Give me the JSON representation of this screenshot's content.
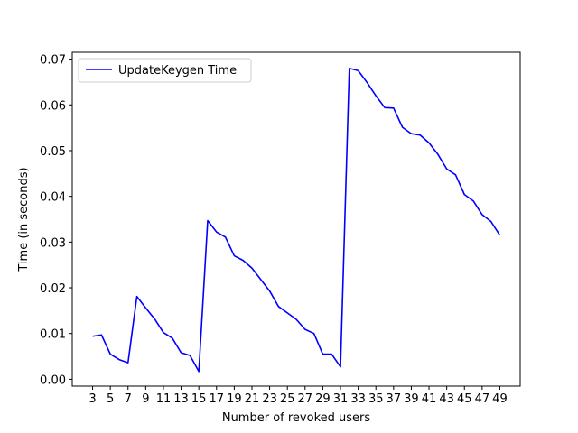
{
  "chart_data": {
    "type": "line",
    "title": "",
    "xlabel": "Number of revoked users",
    "ylabel": "Time (in seconds)",
    "xlim": [
      0.7,
      51.3
    ],
    "ylim": [
      -0.0015,
      0.0715
    ],
    "xticks": [
      3,
      5,
      7,
      9,
      11,
      13,
      15,
      17,
      19,
      21,
      23,
      25,
      27,
      29,
      31,
      33,
      35,
      37,
      39,
      41,
      43,
      45,
      47,
      49
    ],
    "yticks": [
      0.0,
      0.01,
      0.02,
      0.03,
      0.04,
      0.05,
      0.06,
      0.07
    ],
    "ytick_labels": [
      "0.00",
      "0.01",
      "0.02",
      "0.03",
      "0.04",
      "0.05",
      "0.06",
      "0.07"
    ],
    "legend_position": "top-left",
    "grid": false,
    "series": [
      {
        "name": "UpdateKeygen Time",
        "color": "#0000ff",
        "x": [
          3,
          4,
          5,
          6,
          7,
          8,
          9,
          10,
          11,
          12,
          13,
          14,
          15,
          16,
          17,
          18,
          19,
          20,
          21,
          22,
          23,
          24,
          25,
          26,
          27,
          28,
          29,
          30,
          31,
          32,
          33,
          34,
          35,
          36,
          37,
          38,
          39,
          40,
          41,
          42,
          43,
          44,
          45,
          46,
          47,
          48,
          49
        ],
        "y": [
          0.0094,
          0.0097,
          0.0055,
          0.0043,
          0.0036,
          0.0181,
          0.0156,
          0.0132,
          0.0102,
          0.009,
          0.0058,
          0.0052,
          0.0017,
          0.0347,
          0.0322,
          0.0311,
          0.027,
          0.026,
          0.0243,
          0.0218,
          0.0193,
          0.0159,
          0.0145,
          0.0131,
          0.0109,
          0.01,
          0.0055,
          0.0055,
          0.0027,
          0.068,
          0.0675,
          0.0649,
          0.062,
          0.0594,
          0.0593,
          0.0551,
          0.0537,
          0.0534,
          0.0517,
          0.0492,
          0.046,
          0.0447,
          0.0404,
          0.039,
          0.036,
          0.0345,
          0.0315
        ]
      }
    ]
  }
}
